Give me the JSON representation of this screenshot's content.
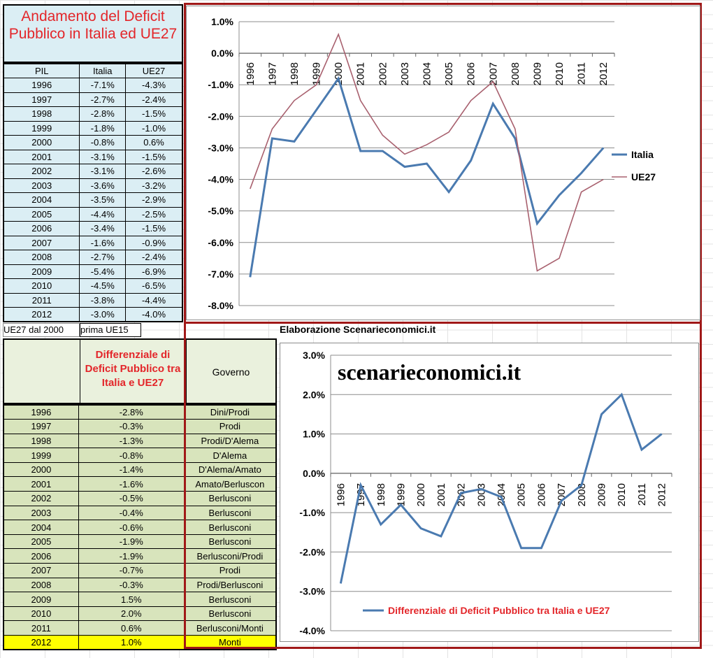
{
  "table1": {
    "title": "Andamento del Deficit Pubblico in Italia ed UE27",
    "headers": [
      "PIL",
      "Italia",
      "UE27"
    ],
    "rows": [
      [
        "1996",
        "-7.1%",
        "-4.3%"
      ],
      [
        "1997",
        "-2.7%",
        "-2.4%"
      ],
      [
        "1998",
        "-2.8%",
        "-1.5%"
      ],
      [
        "1999",
        "-1.8%",
        "-1.0%"
      ],
      [
        "2000",
        "-0.8%",
        "0.6%"
      ],
      [
        "2001",
        "-3.1%",
        "-1.5%"
      ],
      [
        "2002",
        "-3.1%",
        "-2.6%"
      ],
      [
        "2003",
        "-3.6%",
        "-3.2%"
      ],
      [
        "2004",
        "-3.5%",
        "-2.9%"
      ],
      [
        "2005",
        "-4.4%",
        "-2.5%"
      ],
      [
        "2006",
        "-3.4%",
        "-1.5%"
      ],
      [
        "2007",
        "-1.6%",
        "-0.9%"
      ],
      [
        "2008",
        "-2.7%",
        "-2.4%"
      ],
      [
        "2009",
        "-5.4%",
        "-6.9%"
      ],
      [
        "2010",
        "-4.5%",
        "-6.5%"
      ],
      [
        "2011",
        "-3.8%",
        "-4.4%"
      ],
      [
        "2012",
        "-3.0%",
        "-4.0%"
      ]
    ]
  },
  "notes": {
    "left": "UE27 dal 2000",
    "right": "prima UE15"
  },
  "credit": "Elaborazione Scenarieconomici.it",
  "watermark": "scenarieconomici.it",
  "table2": {
    "header_year": "",
    "header_diff": "Differenziale di Deficit Pubblico tra Italia e UE27",
    "header_gov": "Governo",
    "rows": [
      [
        "1996",
        "-2.8%",
        "Dini/Prodi"
      ],
      [
        "1997",
        "-0.3%",
        "Prodi"
      ],
      [
        "1998",
        "-1.3%",
        "Prodi/D'Alema"
      ],
      [
        "1999",
        "-0.8%",
        "D'Alema"
      ],
      [
        "2000",
        "-1.4%",
        "D'Alema/Amato"
      ],
      [
        "2001",
        "-1.6%",
        "Amato/Berluscon"
      ],
      [
        "2002",
        "-0.5%",
        "Berlusconi"
      ],
      [
        "2003",
        "-0.4%",
        "Berlusconi"
      ],
      [
        "2004",
        "-0.6%",
        "Berlusconi"
      ],
      [
        "2005",
        "-1.9%",
        "Berlusconi"
      ],
      [
        "2006",
        "-1.9%",
        "Berlusconi/Prodi"
      ],
      [
        "2007",
        "-0.7%",
        "Prodi"
      ],
      [
        "2008",
        "-0.3%",
        "Prodi/Berlusconi"
      ],
      [
        "2009",
        "1.5%",
        "Berlusconi"
      ],
      [
        "2010",
        "2.0%",
        "Berlusconi"
      ],
      [
        "2011",
        "0.6%",
        "Berlusconi/Monti"
      ],
      [
        "2012",
        "1.0%",
        "Monti"
      ]
    ]
  },
  "chart_data": [
    {
      "type": "line",
      "title": "",
      "categories": [
        "1996",
        "1997",
        "1998",
        "1999",
        "2000",
        "2001",
        "2002",
        "2003",
        "2004",
        "2005",
        "2006",
        "2007",
        "2008",
        "2009",
        "2010",
        "2011",
        "2012"
      ],
      "series": [
        {
          "name": "Italia",
          "color": "#4a7ab0",
          "values": [
            -7.1,
            -2.7,
            -2.8,
            -1.8,
            -0.8,
            -3.1,
            -3.1,
            -3.6,
            -3.5,
            -4.4,
            -3.4,
            -1.6,
            -2.7,
            -5.4,
            -4.5,
            -3.8,
            -3.0
          ]
        },
        {
          "name": "UE27",
          "color": "#a8606e",
          "values": [
            -4.3,
            -2.4,
            -1.5,
            -1.0,
            0.6,
            -1.5,
            -2.6,
            -3.2,
            -2.9,
            -2.5,
            -1.5,
            -0.9,
            -2.4,
            -6.9,
            -6.5,
            -4.4,
            -4.0
          ]
        }
      ],
      "yticks": [
        "1.0%",
        "0.0%",
        "-1.0%",
        "-2.0%",
        "-3.0%",
        "-4.0%",
        "-5.0%",
        "-6.0%",
        "-7.0%",
        "-8.0%"
      ],
      "ylim": [
        -8,
        1
      ],
      "grid": true,
      "legend": "right"
    },
    {
      "type": "line",
      "title": "",
      "categories": [
        "1996",
        "1997",
        "1998",
        "1999",
        "2000",
        "2001",
        "2002",
        "2003",
        "2004",
        "2005",
        "2006",
        "2007",
        "2008",
        "2009",
        "2010",
        "2011",
        "2012"
      ],
      "series": [
        {
          "name": "Differenziale di Deficit Pubblico tra Italia e UE27",
          "color": "#4a7ab0",
          "values": [
            -2.8,
            -0.3,
            -1.3,
            -0.8,
            -1.4,
            -1.6,
            -0.5,
            -0.4,
            -0.6,
            -1.9,
            -1.9,
            -0.7,
            -0.3,
            1.5,
            2.0,
            0.6,
            1.0
          ]
        }
      ],
      "yticks": [
        "3.0%",
        "2.0%",
        "1.0%",
        "0.0%",
        "-1.0%",
        "-2.0%",
        "-3.0%",
        "-4.0%"
      ],
      "ylim": [
        -4,
        3
      ],
      "grid": true,
      "legend": "bottom"
    }
  ]
}
